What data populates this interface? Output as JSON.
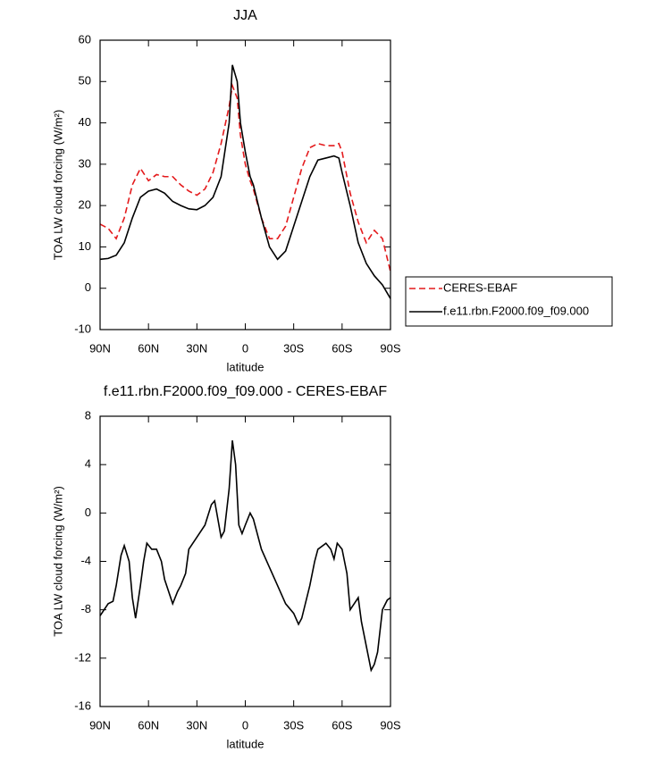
{
  "chart_data": [
    {
      "type": "line",
      "title": "JJA",
      "xlabel": "latitude",
      "ylabel": "TOA LW cloud forcing (W/m²)",
      "x": [
        90,
        85,
        80,
        75,
        70,
        65,
        60,
        55,
        50,
        45,
        40,
        35,
        30,
        25,
        20,
        15,
        10,
        8,
        5,
        3,
        0,
        -3,
        -5,
        -10,
        -15,
        -20,
        -25,
        -30,
        -35,
        -40,
        -45,
        -50,
        -55,
        -58,
        -60,
        -65,
        -70,
        -75,
        -80,
        -85,
        -90
      ],
      "series": [
        {
          "name": "CERES-EBAF",
          "color": "#e41a1c",
          "dashed": true,
          "values": [
            15.5,
            14.5,
            12,
            17,
            25,
            29,
            26,
            27.5,
            27,
            27,
            25,
            23.5,
            22.5,
            24,
            28,
            35,
            44,
            49,
            46,
            37,
            30,
            26,
            24,
            17,
            12,
            12,
            15,
            22,
            29,
            34,
            35,
            34.5,
            34.5,
            35,
            33,
            23,
            16,
            11,
            14,
            12,
            4
          ]
        },
        {
          "name": "f.e11.rbn.F2000.f09_f09.000",
          "color": "#000000",
          "dashed": false,
          "values": [
            7,
            7.2,
            8,
            11,
            17,
            22,
            23.5,
            24,
            23,
            21,
            20,
            19.2,
            19,
            20,
            22,
            27,
            40,
            54,
            50,
            40,
            33,
            27,
            25,
            17,
            10,
            7,
            9,
            15,
            21,
            27,
            31,
            31.5,
            32,
            31.5,
            28,
            20,
            11,
            6,
            3,
            0.8,
            -2.5
          ]
        }
      ],
      "xlim": [
        90,
        -90
      ],
      "xticks": [
        {
          "value": 90,
          "label": "90N"
        },
        {
          "value": 60,
          "label": "60N"
        },
        {
          "value": 30,
          "label": "30N"
        },
        0,
        {
          "value": -30,
          "label": "30S"
        },
        {
          "value": -60,
          "label": "60S"
        },
        {
          "value": -90,
          "label": "90S"
        }
      ],
      "ylim": [
        -10,
        60
      ],
      "yticks": [
        -10,
        0,
        10,
        20,
        30,
        40,
        50,
        60
      ],
      "legend": "right"
    },
    {
      "type": "line",
      "title": "f.e11.rbn.F2000.f09_f09.000 - CERES-EBAF",
      "xlabel": "latitude",
      "ylabel": "TOA LW cloud forcing (W/m²)",
      "x": [
        90,
        85,
        82,
        80,
        77,
        75,
        72,
        70,
        68,
        65,
        63,
        61,
        58,
        55,
        52,
        50,
        45,
        42,
        40,
        37,
        35,
        30,
        25,
        21,
        19,
        17,
        15,
        13,
        10,
        8,
        6,
        4,
        2,
        0,
        -3,
        -5,
        -10,
        -15,
        -20,
        -25,
        -30,
        -33,
        -35,
        -40,
        -43,
        -45,
        -50,
        -53,
        -55,
        -57,
        -60,
        -63,
        -65,
        -70,
        -72,
        -75,
        -78,
        -80,
        -82,
        -85,
        -88,
        -90
      ],
      "values": [
        -8.5,
        -7.5,
        -7.3,
        -6,
        -3.5,
        -2.7,
        -4,
        -7,
        -8.7,
        -6,
        -4,
        -2.5,
        -3,
        -3,
        -4,
        -5.5,
        -7.5,
        -6.5,
        -6,
        -5,
        -3,
        -2,
        -1,
        0.7,
        1,
        -0.5,
        -2,
        -1.5,
        2,
        6,
        4,
        -1,
        -1.7,
        -1,
        0,
        -0.5,
        -3,
        -4.5,
        -6,
        -7.5,
        -8.3,
        -9.2,
        -8.7,
        -6,
        -4,
        -3,
        -2.5,
        -3,
        -3.8,
        -2.5,
        -3,
        -5,
        -8,
        -7,
        -9,
        -11,
        -13,
        -12.5,
        -11.5,
        -8,
        -7.2,
        -7
      ],
      "color": "#000000",
      "xlim": [
        90,
        -90
      ],
      "xticks": [
        {
          "value": 90,
          "label": "90N"
        },
        {
          "value": 60,
          "label": "60N"
        },
        {
          "value": 30,
          "label": "30N"
        },
        0,
        {
          "value": -30,
          "label": "30S"
        },
        {
          "value": -60,
          "label": "60S"
        },
        {
          "value": -90,
          "label": "90S"
        }
      ],
      "ylim": [
        -16,
        8
      ],
      "yticks": [
        -16,
        -12,
        -8,
        -4,
        0,
        4,
        8
      ]
    }
  ]
}
